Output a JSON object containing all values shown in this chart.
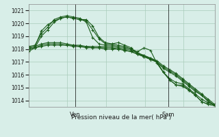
{
  "title": "",
  "xlabel": "Pression niveau de la mer( hPa )",
  "ylabel": "",
  "bg_color": "#d8eee8",
  "grid_color": "#aaccbb",
  "line_color": "#1a5c1a",
  "ylim": [
    1013.5,
    1021.5
  ],
  "xlim": [
    0,
    48
  ],
  "yticks": [
    1014,
    1015,
    1016,
    1017,
    1018,
    1019,
    1020,
    1021
  ],
  "ven_x": 12,
  "sam_x": 36,
  "series": [
    [
      1017.8,
      1018.1,
      1019.0,
      1019.5,
      1020.1,
      1020.4,
      1020.5,
      1020.4,
      1020.3,
      1020.3,
      1019.8,
      1018.9,
      1018.5,
      1018.4,
      1018.5,
      1018.3,
      1018.1,
      1017.6,
      1017.5,
      1017.3,
      1017.0,
      1016.2,
      1015.7,
      1015.4,
      1015.3,
      1014.9,
      1014.5,
      1014.1,
      1013.8,
      1013.7
    ],
    [
      1018.1,
      1018.2,
      1019.4,
      1019.9,
      1020.2,
      1020.4,
      1020.5,
      1020.4,
      1020.3,
      1020.2,
      1019.5,
      1018.8,
      1018.4,
      1018.4,
      1018.3,
      1018.2,
      1018.0,
      1017.7,
      1017.5,
      1017.2,
      1017.0,
      1016.2,
      1015.6,
      1015.2,
      1015.2,
      1014.8,
      1014.4,
      1013.9,
      1013.7,
      1013.6
    ],
    [
      1018.2,
      1018.3,
      1019.2,
      1019.7,
      1020.3,
      1020.5,
      1020.6,
      1020.5,
      1020.4,
      1020.1,
      1018.9,
      1018.4,
      1018.3,
      1018.3,
      1018.2,
      1018.1,
      1018.0,
      1017.8,
      1018.1,
      1017.9,
      1016.9,
      1016.2,
      1015.6,
      1015.2,
      1015.1,
      1014.8,
      1014.4,
      1013.9,
      1013.7,
      1013.6
    ],
    [
      1018.1,
      1018.2,
      1018.4,
      1018.5,
      1018.5,
      1018.5,
      1018.4,
      1018.3,
      1018.3,
      1018.2,
      1018.2,
      1018.2,
      1018.2,
      1018.2,
      1018.1,
      1018.0,
      1017.9,
      1017.7,
      1017.5,
      1017.3,
      1017.1,
      1016.7,
      1016.4,
      1016.1,
      1015.7,
      1015.3,
      1014.9,
      1014.5,
      1014.1,
      1013.7
    ],
    [
      1018.0,
      1018.1,
      1018.3,
      1018.4,
      1018.4,
      1018.4,
      1018.3,
      1018.3,
      1018.2,
      1018.2,
      1018.1,
      1018.1,
      1018.1,
      1018.1,
      1018.0,
      1017.9,
      1017.8,
      1017.6,
      1017.4,
      1017.2,
      1017.0,
      1016.6,
      1016.3,
      1016.0,
      1015.6,
      1015.2,
      1014.8,
      1014.4,
      1014.0,
      1013.6
    ],
    [
      1018.0,
      1018.1,
      1018.2,
      1018.3,
      1018.3,
      1018.3,
      1018.3,
      1018.2,
      1018.2,
      1018.1,
      1018.1,
      1018.1,
      1018.0,
      1018.0,
      1018.0,
      1017.9,
      1017.8,
      1017.6,
      1017.4,
      1017.2,
      1017.0,
      1016.5,
      1016.2,
      1015.9,
      1015.5,
      1015.1,
      1014.7,
      1014.4,
      1013.9,
      1013.6
    ]
  ]
}
